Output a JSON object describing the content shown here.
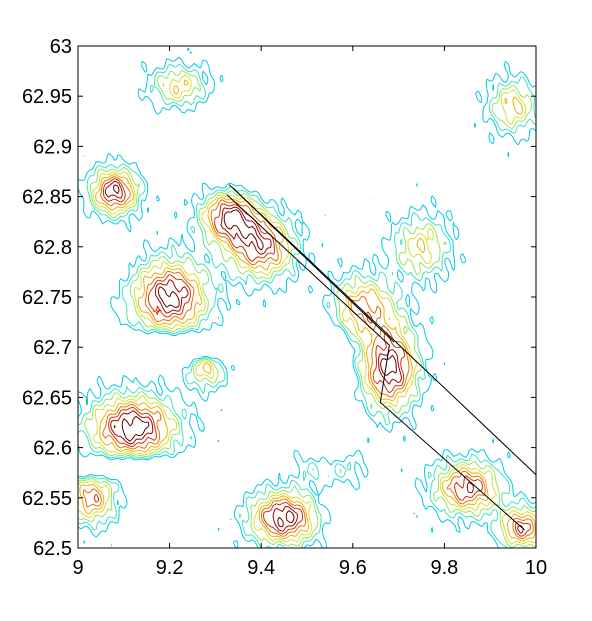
{
  "chart_data": {
    "type": "contour",
    "title": "",
    "xlabel": "",
    "ylabel": "",
    "xlim": [
      9,
      10
    ],
    "ylim": [
      62.5,
      63
    ],
    "grid": false,
    "legend": "none",
    "x_tick_labels": [
      "9",
      "9.2",
      "9.4",
      "9.6",
      "9.8",
      "10"
    ],
    "x_ticks": [
      9,
      9.2,
      9.4,
      9.6,
      9.8,
      10
    ],
    "y_tick_labels": [
      "63",
      "62.95",
      "62.9",
      "62.85",
      "62.8",
      "62.75",
      "62.7",
      "62.65",
      "62.6",
      "62.55",
      "62.5"
    ],
    "y_ticks": [
      63,
      62.95,
      62.9,
      62.85,
      62.8,
      62.75,
      62.7,
      62.65,
      62.6,
      62.55,
      62.5
    ],
    "contour_level_colors": [
      "#00c8e8",
      "#40e0c0",
      "#90e860",
      "#d8e030",
      "#f0b000",
      "#e87000",
      "#d03000",
      "#a00000",
      "#600000"
    ],
    "transect_lines": [
      {
        "name": "",
        "color": "#000000",
        "points": [
          [
            9.33,
            62.862
          ],
          [
            9.69,
            62.707
          ],
          [
            10.0,
            62.573
          ]
        ]
      },
      {
        "name": "",
        "color": "#000000",
        "points": [
          [
            9.325,
            62.852
          ],
          [
            9.68,
            62.702
          ],
          [
            9.66,
            62.645
          ],
          [
            9.975,
            62.518
          ]
        ]
      },
      {
        "name": "",
        "color": "#000000",
        "points": [
          [
            9.34,
            62.858
          ],
          [
            9.43,
            62.818
          ],
          [
            9.69,
            62.705
          ]
        ]
      }
    ]
  }
}
